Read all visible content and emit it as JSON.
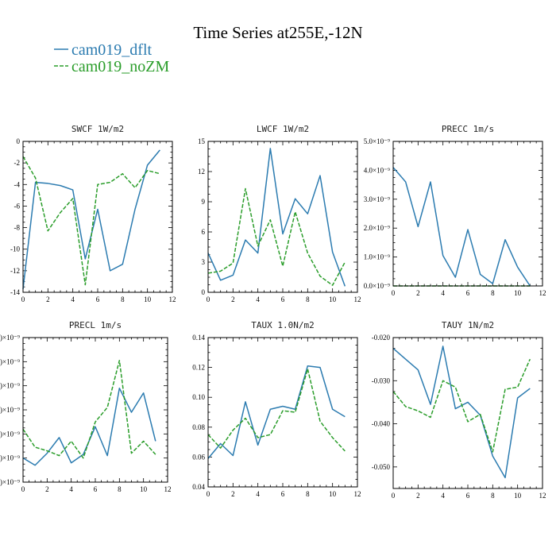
{
  "figure": {
    "title": "Time Series at255E,-12N",
    "colors": {
      "dflt": "#2b7bb0",
      "noZM": "#2a9d2a"
    }
  },
  "legend": {
    "items": [
      {
        "label": "cam019_dflt",
        "color": "#2b7bb0",
        "dash": false
      },
      {
        "label": "cam019_noZM",
        "color": "#2a9d2a",
        "dash": true
      }
    ]
  },
  "chart_data": [
    {
      "type": "line",
      "title": "SWCF  1W/m2",
      "x": [
        0,
        1,
        2,
        3,
        4,
        5,
        6,
        7,
        8,
        9,
        10,
        11
      ],
      "xlim": [
        0,
        12
      ],
      "xticks": [
        0,
        2,
        4,
        6,
        8,
        10,
        12
      ],
      "xtick_labels": [
        "0",
        "2",
        "4",
        "6",
        "8",
        "10",
        "12"
      ],
      "ylim": [
        -14,
        0
      ],
      "yticks": [
        -14,
        -12,
        -10,
        -8,
        -6,
        -4,
        -2,
        0
      ],
      "ytick_labels": [
        "-14",
        "-12",
        "-10",
        "-8",
        "-6",
        "-4",
        "-2",
        "0"
      ],
      "series": [
        {
          "name": "cam019_dflt",
          "values": [
            -13.7,
            -3.8,
            -3.9,
            -4.1,
            -4.5,
            -10.9,
            -6.3,
            -12.0,
            -11.4,
            -6.3,
            -2.2,
            -0.8
          ]
        },
        {
          "name": "cam019_noZM",
          "values": [
            -1.4,
            -3.4,
            -8.3,
            -6.6,
            -5.3,
            -13.3,
            -4.0,
            -3.8,
            -3.0,
            -4.3,
            -2.7,
            -3.0
          ]
        }
      ]
    },
    {
      "type": "line",
      "title": "LWCF  1W/m2",
      "x": [
        0,
        1,
        2,
        3,
        4,
        5,
        6,
        7,
        8,
        9,
        10,
        11
      ],
      "xlim": [
        0,
        12
      ],
      "xticks": [
        0,
        2,
        4,
        6,
        8,
        10,
        12
      ],
      "xtick_labels": [
        "0",
        "2",
        "4",
        "6",
        "8",
        "10",
        "12"
      ],
      "ylim": [
        0,
        15
      ],
      "yticks": [
        0,
        3,
        6,
        9,
        12,
        15
      ],
      "ytick_labels": [
        "0",
        "3",
        "6",
        "9",
        "12",
        "15"
      ],
      "series": [
        {
          "name": "cam019_dflt",
          "values": [
            3.9,
            1.2,
            1.7,
            5.2,
            3.9,
            14.3,
            5.8,
            9.3,
            7.8,
            11.6,
            4.0,
            0.6
          ]
        },
        {
          "name": "cam019_noZM",
          "values": [
            1.9,
            2.1,
            2.9,
            10.3,
            4.6,
            7.2,
            2.6,
            8.0,
            3.9,
            1.6,
            0.7,
            3.0
          ]
        }
      ]
    },
    {
      "type": "line",
      "title": "PRECC  1m/s",
      "x": [
        0,
        1,
        2,
        3,
        4,
        5,
        6,
        7,
        8,
        9,
        10,
        11
      ],
      "xlim": [
        0,
        12
      ],
      "xticks": [
        0,
        2,
        4,
        6,
        8,
        10,
        12
      ],
      "xtick_labels": [
        "0",
        "2",
        "4",
        "6",
        "8",
        "10",
        "12"
      ],
      "ylim": [
        0,
        5e-09
      ],
      "yticks": [
        0,
        1e-09,
        2e-09,
        3e-09,
        4e-09,
        5e-09
      ],
      "ytick_labels": [
        "0.0×10⁻⁹",
        "1.0×10⁻⁹",
        "2.0×10⁻⁹",
        "3.0×10⁻⁹",
        "4.0×10⁻⁹",
        "5.0×10⁻⁹"
      ],
      "series": [
        {
          "name": "cam019_dflt",
          "values": [
            4.1e-09,
            3.6e-09,
            2.05e-09,
            3.6e-09,
            1.05e-09,
            3e-10,
            1.95e-09,
            4e-10,
            8e-11,
            1.6e-09,
            6.5e-10,
            0.0
          ]
        },
        {
          "name": "cam019_noZM",
          "values": [
            0,
            0,
            0,
            0,
            0,
            0,
            0,
            0,
            0,
            0,
            0,
            0
          ]
        }
      ]
    },
    {
      "type": "line",
      "title": "PRECL  1m/s",
      "x": [
        0,
        1,
        2,
        3,
        4,
        5,
        6,
        7,
        8,
        9,
        10,
        11
      ],
      "xlim": [
        0,
        12
      ],
      "xticks": [
        0,
        2,
        4,
        6,
        8,
        10,
        12
      ],
      "xtick_labels": [
        "0",
        "2",
        "4",
        "6",
        "8",
        "10",
        "12"
      ],
      "ylim": [
        0,
        6
      ],
      "yticks": [
        0,
        1,
        2,
        3,
        4,
        5,
        6
      ],
      "ytick_labels": [
        ")×10⁻⁹",
        ")×10⁻⁹",
        ")×10⁻⁹",
        ")×10⁻⁹",
        ")×10⁻⁹",
        ")×10⁻⁹",
        ")×10⁻⁹"
      ],
      "series": [
        {
          "name": "cam019_dflt",
          "values": [
            1.0,
            0.7,
            1.2,
            1.85,
            0.8,
            1.15,
            2.3,
            1.1,
            3.9,
            2.9,
            3.7,
            1.7
          ]
        },
        {
          "name": "cam019_noZM",
          "values": [
            2.2,
            1.45,
            1.3,
            1.1,
            1.7,
            1.0,
            2.5,
            3.1,
            5.05,
            1.2,
            1.7,
            1.15
          ]
        }
      ]
    },
    {
      "type": "line",
      "title": "TAUX  1.0N/m2",
      "x": [
        0,
        1,
        2,
        3,
        4,
        5,
        6,
        7,
        8,
        9,
        10,
        11
      ],
      "xlim": [
        0,
        12
      ],
      "xticks": [
        0,
        2,
        4,
        6,
        8,
        10,
        12
      ],
      "xtick_labels": [
        "0",
        "2",
        "4",
        "6",
        "8",
        "10",
        "12"
      ],
      "ylim": [
        0.04,
        0.14
      ],
      "yticks": [
        0.04,
        0.06,
        0.08,
        0.1,
        0.12,
        0.14
      ],
      "ytick_labels": [
        "0.04",
        "0.06",
        "0.08",
        "0.10",
        "0.12",
        "0.14"
      ],
      "series": [
        {
          "name": "cam019_dflt",
          "values": [
            0.059,
            0.069,
            0.061,
            0.097,
            0.068,
            0.092,
            0.094,
            0.092,
            0.121,
            0.12,
            0.092,
            0.087
          ]
        },
        {
          "name": "cam019_noZM",
          "values": [
            0.075,
            0.066,
            0.078,
            0.086,
            0.073,
            0.075,
            0.091,
            0.09,
            0.119,
            0.084,
            0.073,
            0.064
          ]
        }
      ]
    },
    {
      "type": "line",
      "title": "TAUY  1N/m2",
      "x": [
        0,
        1,
        2,
        3,
        4,
        5,
        6,
        7,
        8,
        9,
        10,
        11
      ],
      "xlim": [
        0,
        12
      ],
      "xticks": [
        0,
        2,
        4,
        6,
        8,
        10,
        12
      ],
      "xtick_labels": [
        "0",
        "2",
        "4",
        "6",
        "8",
        "10",
        "12"
      ],
      "ylim": [
        -0.055,
        -0.02
      ],
      "yticks": [
        -0.05,
        -0.04,
        -0.03,
        -0.02
      ],
      "ytick_labels": [
        "-0.050",
        "-0.040",
        "-0.030",
        "-0.020"
      ],
      "series": [
        {
          "name": "cam019_dflt",
          "values": [
            -0.0225,
            -0.025,
            -0.0275,
            -0.0355,
            -0.022,
            -0.0365,
            -0.035,
            -0.038,
            -0.0475,
            -0.0525,
            -0.034,
            -0.0318
          ]
        },
        {
          "name": "cam019_noZM",
          "values": [
            -0.0325,
            -0.036,
            -0.037,
            -0.0385,
            -0.03,
            -0.0315,
            -0.0395,
            -0.0378,
            -0.0465,
            -0.032,
            -0.0315,
            -0.025
          ]
        }
      ]
    }
  ]
}
